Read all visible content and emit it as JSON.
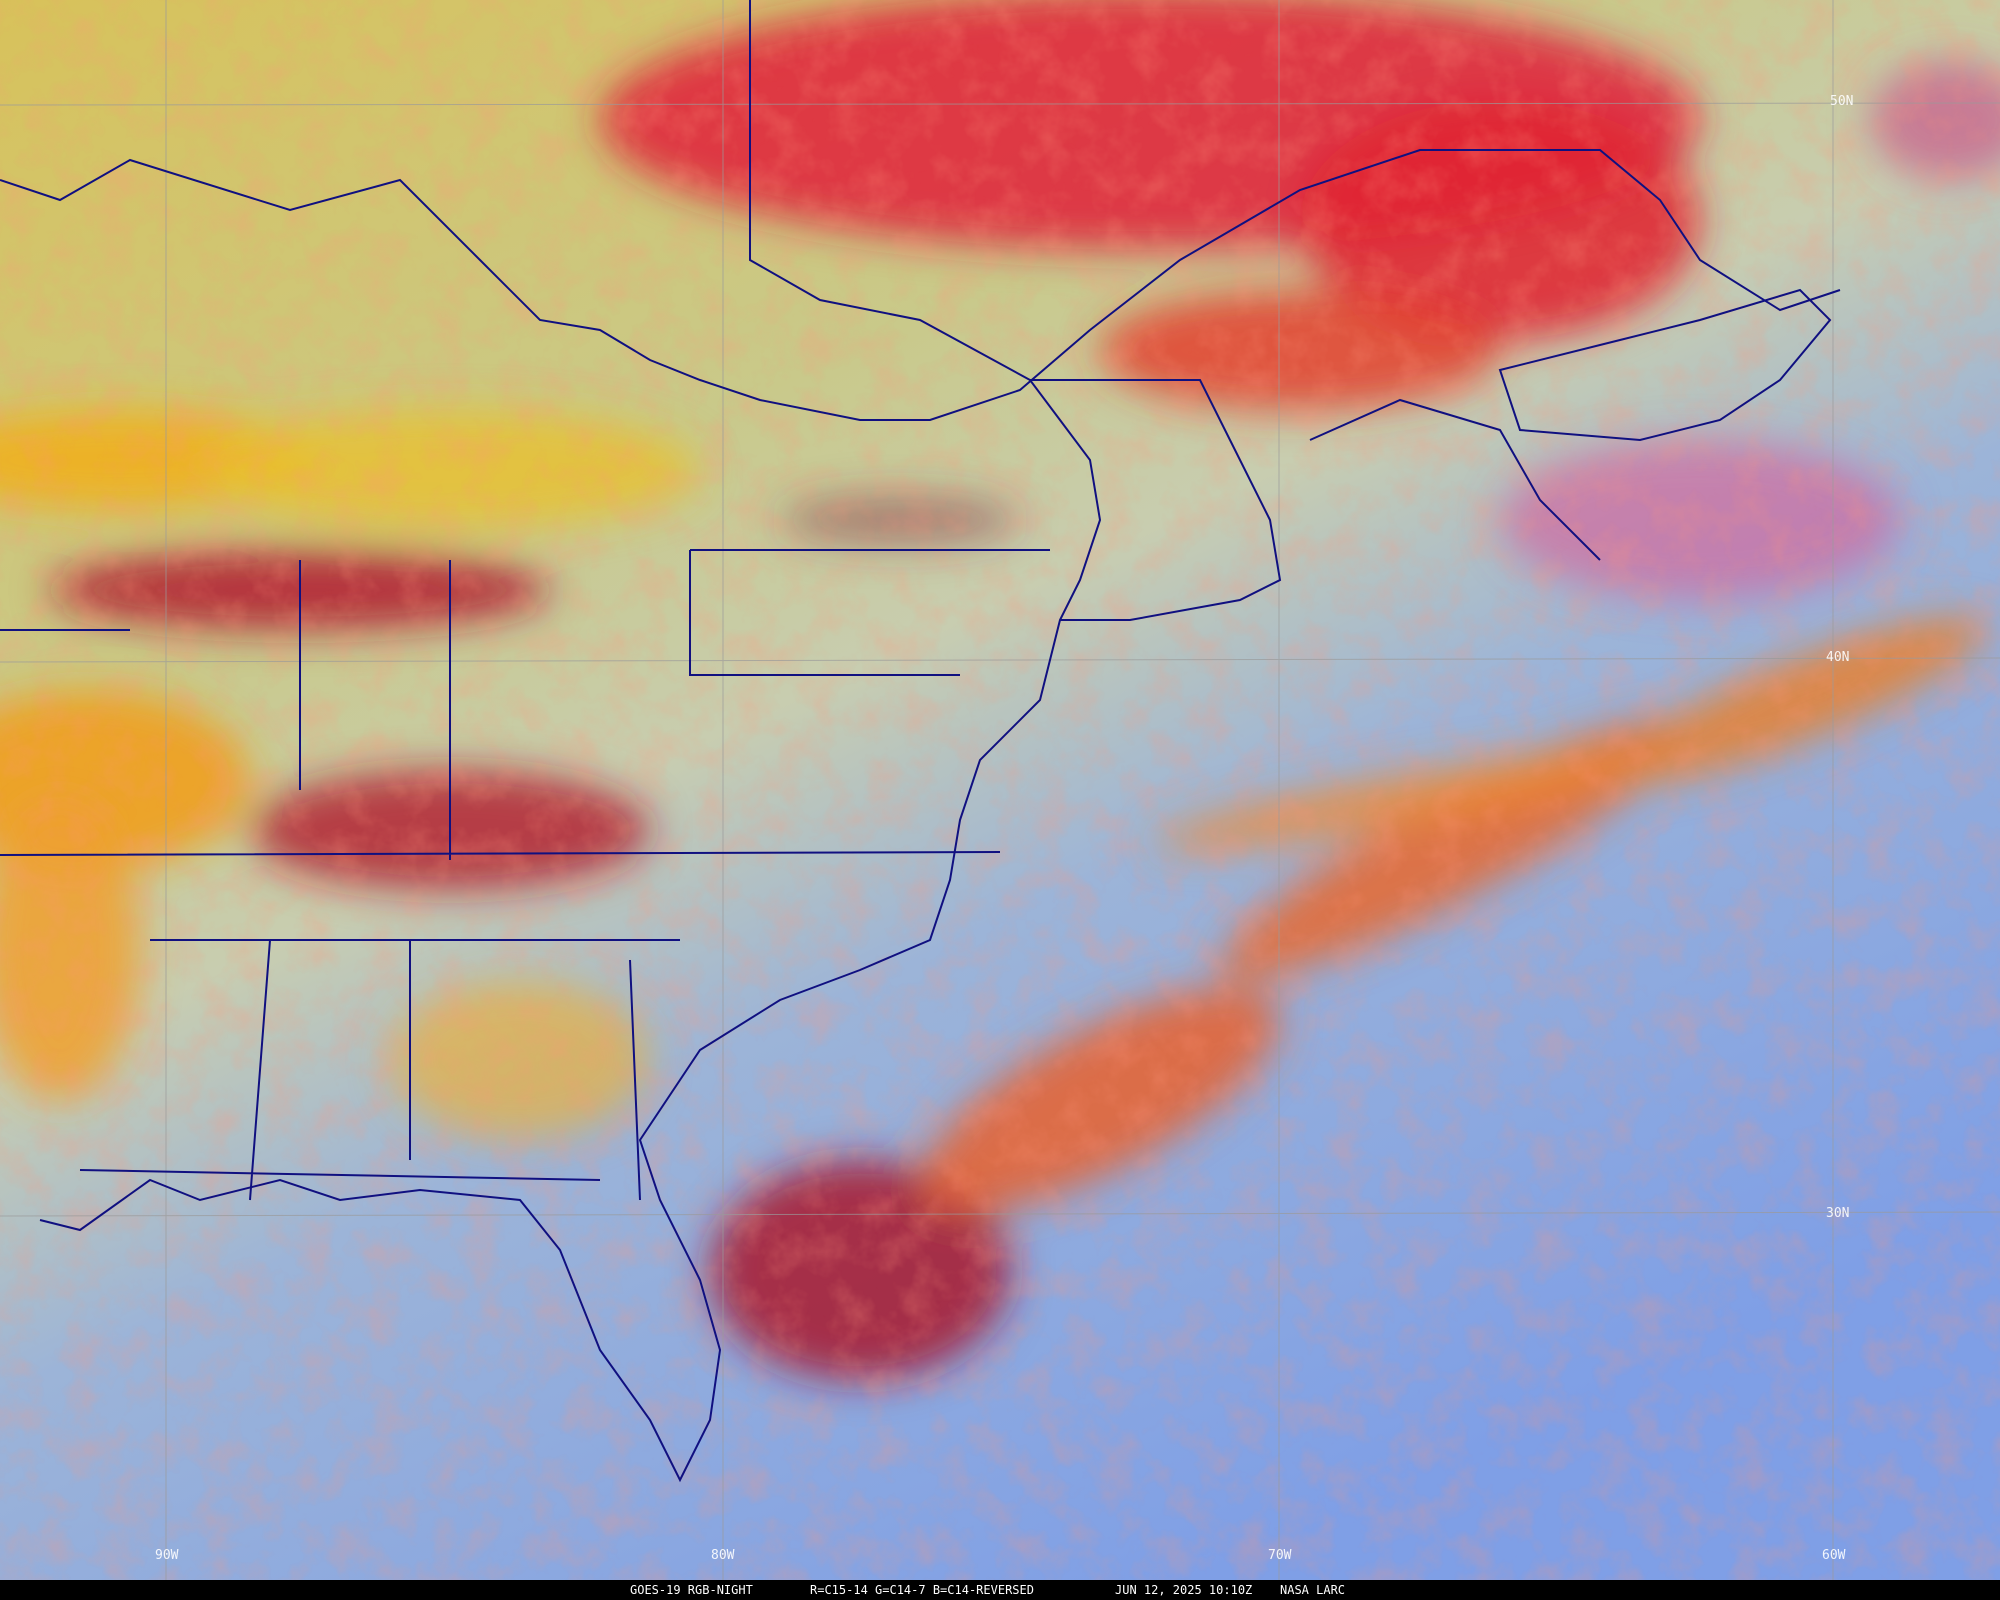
{
  "map": {
    "product": "GOES-19 RGB-NIGHT",
    "channels": "R=C15-14 G=C14-7 B=C14-REVERSED",
    "datetime": "JUN 12, 2025 10:10Z",
    "credit": "NASA LARC",
    "latitude_labels": [
      "50N",
      "40N",
      "30N"
    ],
    "longitude_labels": [
      "90W",
      "80W",
      "70W",
      "60W"
    ],
    "boundary_color": "#101080",
    "grid_color": "#9a9a9a"
  }
}
